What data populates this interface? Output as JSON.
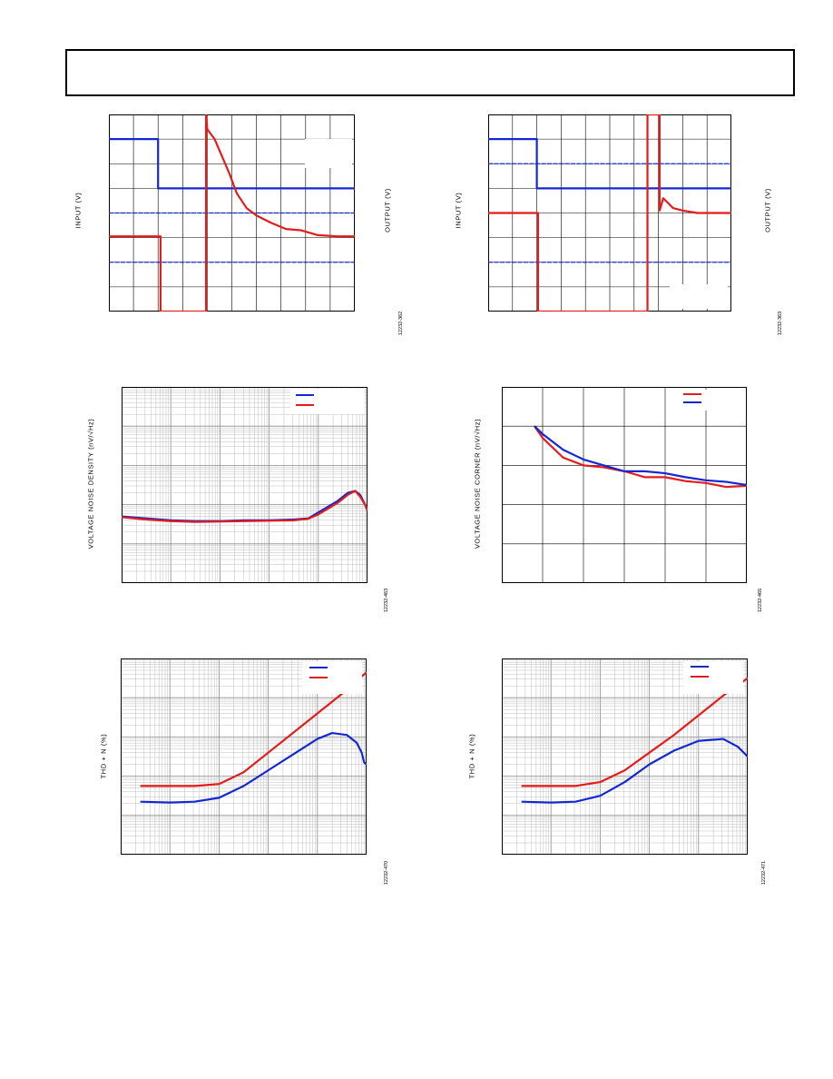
{
  "header": {
    "text": ""
  },
  "colors": {
    "red": "#e31c1c",
    "blue": "#1428d2",
    "grid": "#000000",
    "loggrid": "#bdbdbd"
  },
  "charts": {
    "c1": {
      "ylabel": "INPUT (V)",
      "ylabel_right": "OUTPUT (V)",
      "fig_id": "12232-362"
    },
    "c2": {
      "ylabel": "INPUT (V)",
      "ylabel_right": "OUTPUT (V)",
      "fig_id": "12232-363"
    },
    "c3": {
      "ylabel": "VOLTAGE NOISE DENSITY (nV/√Hz)",
      "fig_id": "12232-463"
    },
    "c4": {
      "ylabel": "VOLTAGE NOISE CORNER (nV/√Hz)",
      "fig_id": "12232-465"
    },
    "c5": {
      "ylabel": "THD + N (%)",
      "fig_id": "12232-470"
    },
    "c6": {
      "ylabel": "THD + N (%)",
      "fig_id": "12232-471"
    }
  },
  "chart_data": [
    {
      "type": "line",
      "id": "c1",
      "grid": "10x8 divisions",
      "xlim": [
        0,
        10
      ],
      "ylim": [
        0,
        8
      ],
      "series": [
        {
          "color": "blue",
          "x": [
            0,
            2,
            2,
            10
          ],
          "values": [
            7.0,
            7.0,
            5.0,
            5.0
          ]
        },
        {
          "color": "blue",
          "dashed": true,
          "x": [
            0,
            10
          ],
          "values": [
            4.0,
            4.0
          ]
        },
        {
          "color": "blue",
          "dashed": true,
          "x": [
            0,
            10
          ],
          "values": [
            2.0,
            2.0
          ]
        },
        {
          "color": "red",
          "x": [
            0,
            2.1,
            2.1,
            2.95,
            3.95,
            3.95,
            4.0,
            4.3,
            4.6,
            4.9,
            5.2,
            5.6,
            6.0,
            6.6,
            7.2,
            7.8,
            8.5,
            9.3,
            10
          ],
          "values": [
            3.05,
            3.05,
            0,
            0,
            0,
            8,
            7.4,
            7.0,
            6.3,
            5.6,
            4.8,
            4.2,
            3.9,
            3.6,
            3.35,
            3.3,
            3.1,
            3.05,
            3.05
          ]
        }
      ]
    },
    {
      "type": "line",
      "id": "c2",
      "grid": "10x8 divisions",
      "xlim": [
        0,
        10
      ],
      "ylim": [
        0,
        8
      ],
      "series": [
        {
          "color": "blue",
          "x": [
            0,
            2,
            2,
            10
          ],
          "values": [
            7.0,
            7.0,
            5.0,
            5.0
          ]
        },
        {
          "color": "blue",
          "dashed": true,
          "x": [
            0,
            10
          ],
          "values": [
            6.0,
            6.0
          ]
        },
        {
          "color": "blue",
          "dashed": true,
          "x": [
            0,
            10
          ],
          "values": [
            2.0,
            2.0
          ]
        },
        {
          "color": "red",
          "x": [
            0,
            2.05,
            2.05,
            6.55,
            6.55,
            7.05,
            7.05,
            7.2,
            7.4,
            7.6,
            8.0,
            8.6,
            9.3,
            10
          ],
          "values": [
            4.0,
            4.0,
            0,
            0,
            8,
            8,
            4.1,
            4.6,
            4.4,
            4.2,
            4.1,
            4.0,
            4.0,
            4.0
          ]
        }
      ]
    },
    {
      "type": "line",
      "id": "c3",
      "grid": "log",
      "xlim": [
        0,
        5
      ],
      "ylim": [
        0,
        5
      ],
      "series": [
        {
          "color": "blue",
          "x": [
            0,
            0.5,
            1,
            1.5,
            2,
            2.5,
            3,
            3.5,
            3.8,
            4.0,
            4.2,
            4.4,
            4.6,
            4.75,
            4.85,
            4.95,
            5.0
          ],
          "values": [
            1.7,
            1.65,
            1.6,
            1.58,
            1.58,
            1.6,
            1.6,
            1.62,
            1.65,
            1.8,
            1.95,
            2.1,
            2.3,
            2.35,
            2.25,
            2.0,
            1.85
          ]
        },
        {
          "color": "red",
          "x": [
            0,
            0.5,
            1,
            1.5,
            2,
            2.5,
            3,
            3.5,
            3.8,
            4.0,
            4.2,
            4.4,
            4.6,
            4.75,
            4.85,
            4.95,
            5.0
          ],
          "values": [
            1.68,
            1.62,
            1.58,
            1.56,
            1.57,
            1.58,
            1.59,
            1.6,
            1.64,
            1.75,
            1.9,
            2.05,
            2.25,
            2.35,
            2.2,
            2.0,
            1.85
          ]
        }
      ]
    },
    {
      "type": "line",
      "id": "c4",
      "grid": "6x5 divisions",
      "xlim": [
        0,
        6
      ],
      "ylim": [
        0,
        5
      ],
      "series": [
        {
          "color": "red",
          "x": [
            0.8,
            1,
            1.5,
            2,
            2.5,
            3,
            3.5,
            4,
            4.5,
            5,
            5.5,
            6
          ],
          "values": [
            4.0,
            3.7,
            3.2,
            3.0,
            2.95,
            2.85,
            2.7,
            2.7,
            2.6,
            2.55,
            2.45,
            2.48
          ]
        },
        {
          "color": "blue",
          "x": [
            0.8,
            1,
            1.5,
            2,
            2.5,
            3,
            3.5,
            4,
            4.5,
            5,
            5.5,
            6
          ],
          "values": [
            4.0,
            3.8,
            3.4,
            3.15,
            3.0,
            2.85,
            2.85,
            2.8,
            2.7,
            2.62,
            2.58,
            2.5
          ]
        }
      ]
    },
    {
      "type": "line",
      "id": "c5",
      "grid": "log",
      "xlim": [
        0,
        5
      ],
      "ylim": [
        0,
        5
      ],
      "series": [
        {
          "color": "red",
          "x": [
            0.4,
            1,
            1.5,
            2,
            2.5,
            3,
            3.5,
            4,
            4.5,
            5
          ],
          "values": [
            1.75,
            1.75,
            1.75,
            1.8,
            2.1,
            2.6,
            3.1,
            3.6,
            4.1,
            4.65
          ]
        },
        {
          "color": "blue",
          "x": [
            0.4,
            1,
            1.5,
            2,
            2.5,
            3,
            3.5,
            4,
            4.3,
            4.6,
            4.8,
            4.9,
            4.95,
            5.0
          ],
          "values": [
            1.35,
            1.33,
            1.35,
            1.45,
            1.75,
            2.15,
            2.55,
            2.95,
            3.1,
            3.05,
            2.85,
            2.6,
            2.35,
            2.3
          ]
        }
      ]
    },
    {
      "type": "line",
      "id": "c6",
      "grid": "log",
      "xlim": [
        0,
        5
      ],
      "ylim": [
        0,
        5
      ],
      "series": [
        {
          "color": "red",
          "x": [
            0.4,
            1,
            1.5,
            2,
            2.5,
            3,
            3.5,
            4,
            4.5,
            5
          ],
          "values": [
            1.75,
            1.75,
            1.75,
            1.85,
            2.15,
            2.6,
            3.05,
            3.55,
            4.05,
            4.5
          ]
        },
        {
          "color": "blue",
          "x": [
            0.4,
            1,
            1.5,
            2,
            2.5,
            3,
            3.5,
            4,
            4.5,
            4.8,
            5.0
          ],
          "values": [
            1.35,
            1.33,
            1.35,
            1.5,
            1.85,
            2.3,
            2.65,
            2.9,
            2.95,
            2.75,
            2.5
          ]
        }
      ]
    }
  ]
}
